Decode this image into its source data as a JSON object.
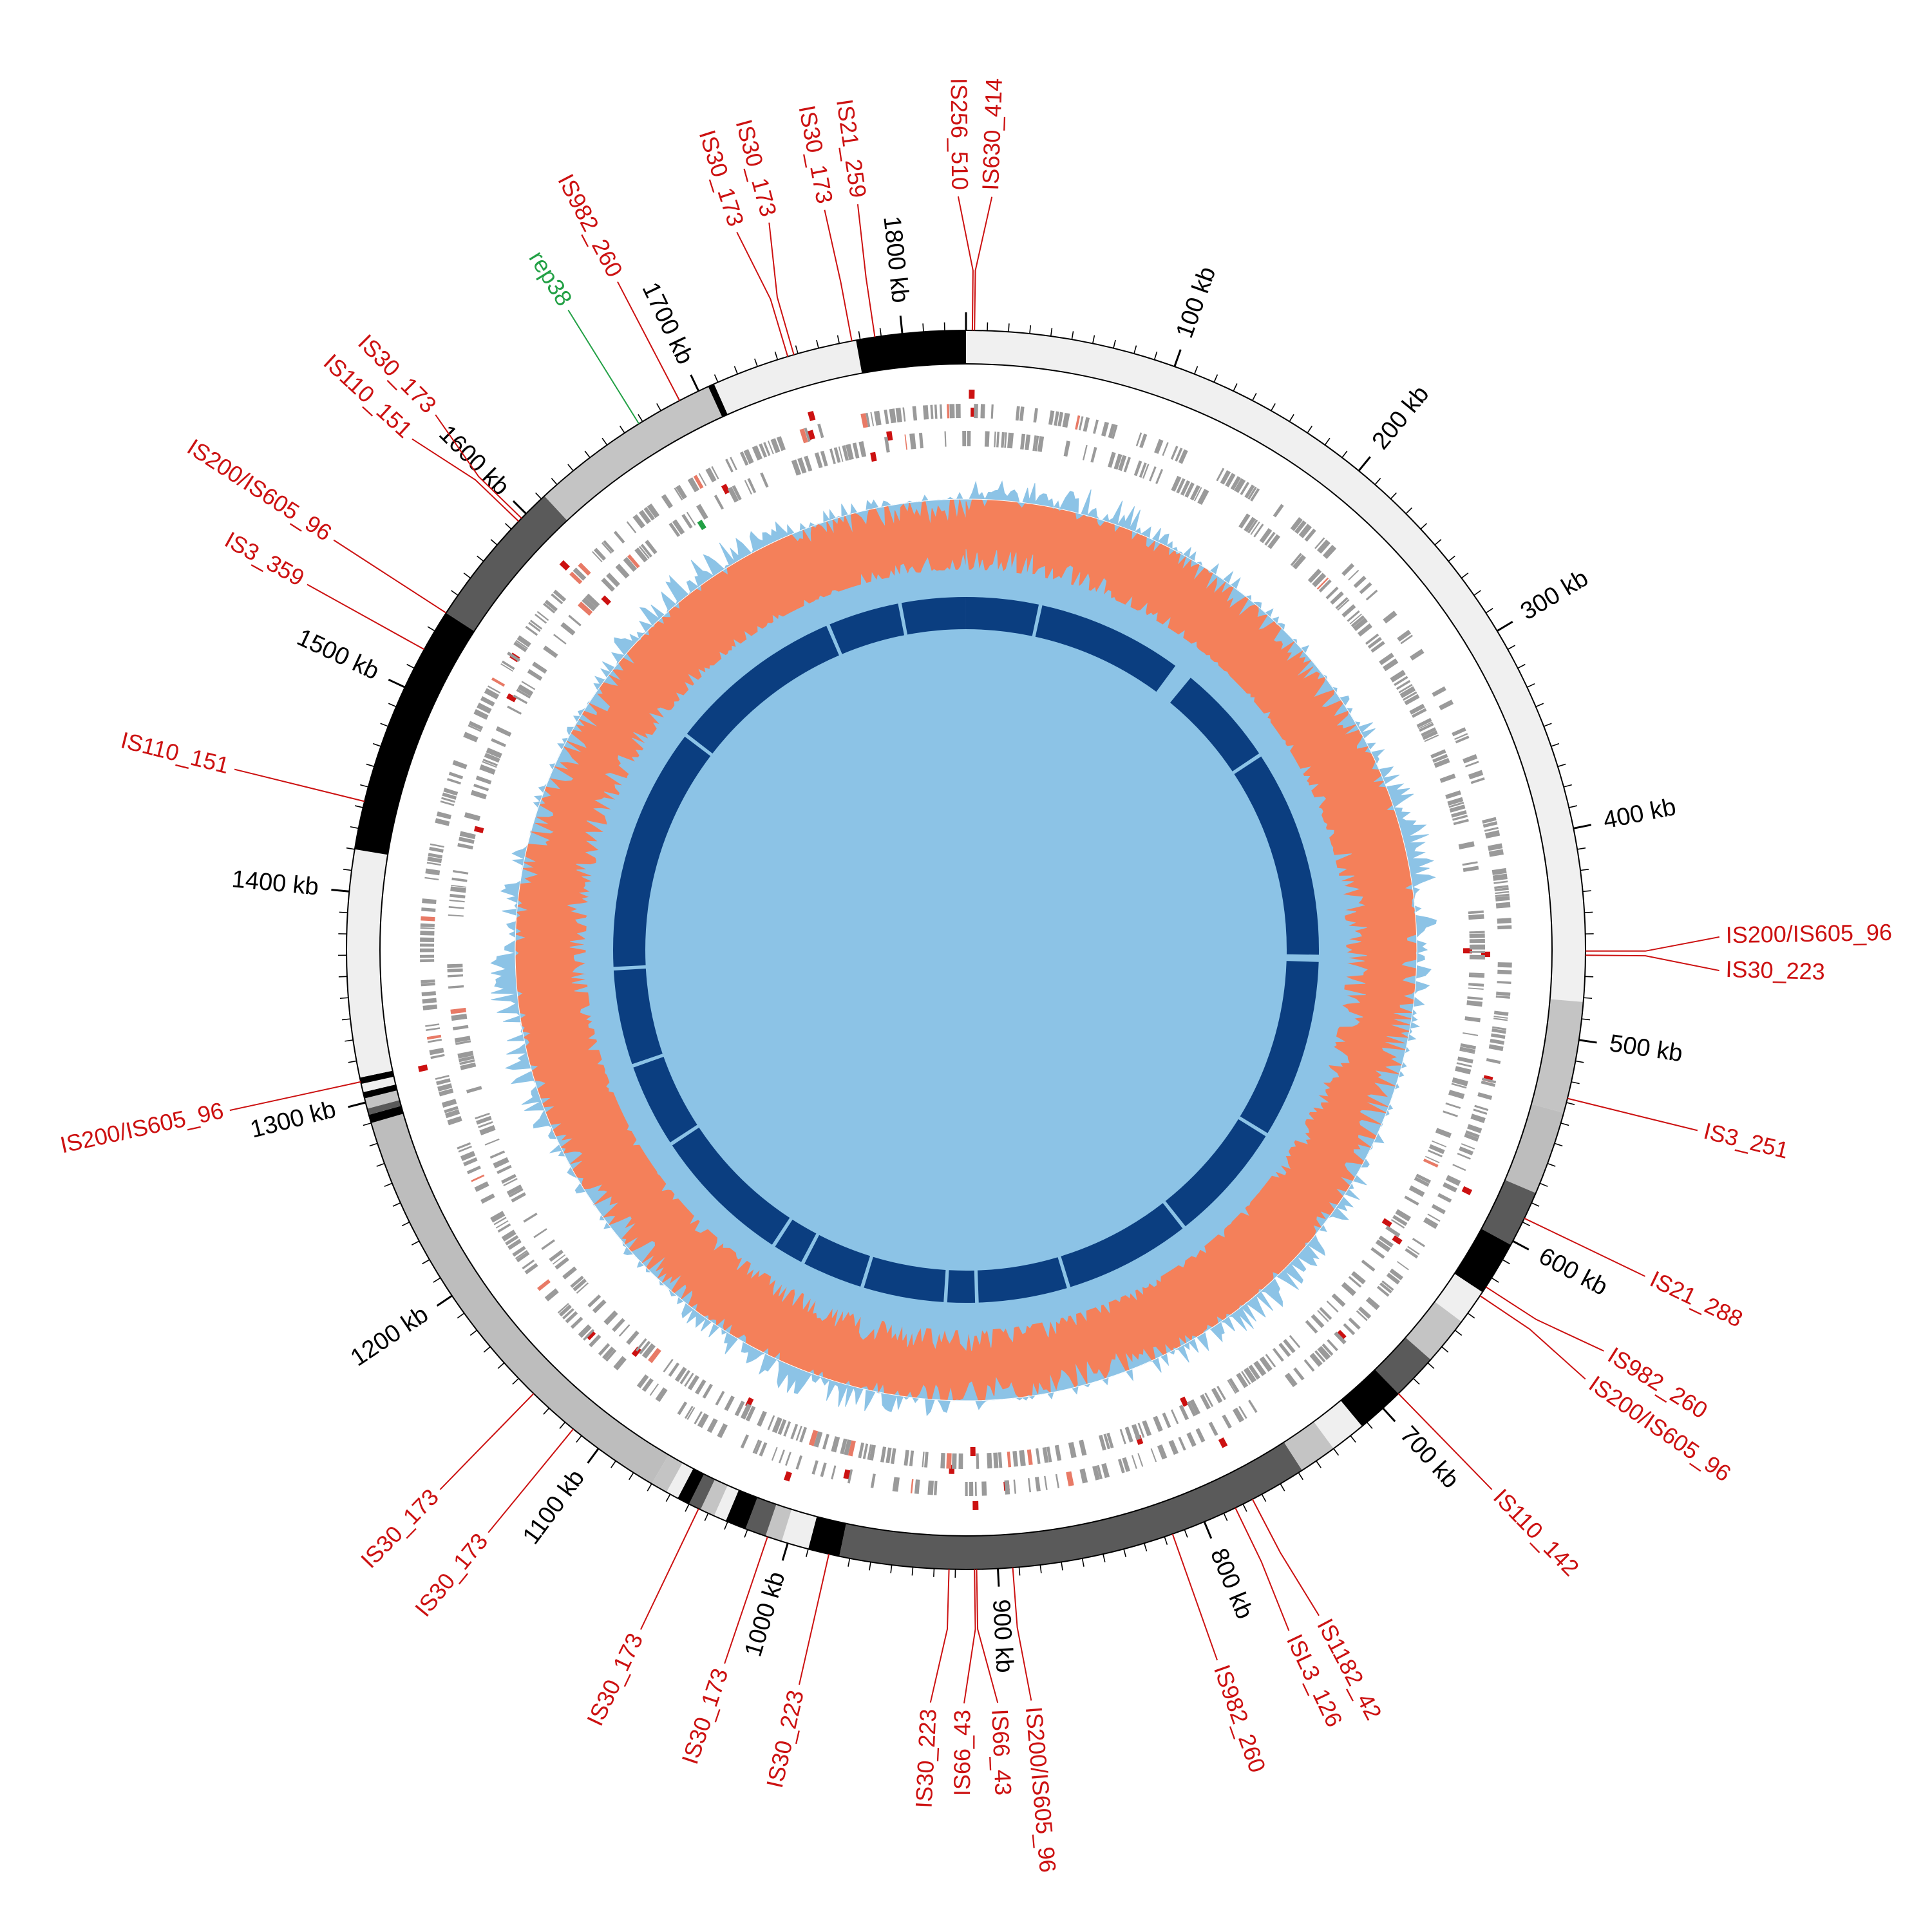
{
  "genome": {
    "length_kb": 1830
  },
  "scale": {
    "major_tick_labels": [
      {
        "kb": 100,
        "label": "100 kb"
      },
      {
        "kb": 200,
        "label": "200 kb"
      },
      {
        "kb": 300,
        "label": "300 kb"
      },
      {
        "kb": 400,
        "label": "400 kb"
      },
      {
        "kb": 500,
        "label": "500 kb"
      },
      {
        "kb": 600,
        "label": "600 kb"
      },
      {
        "kb": 700,
        "label": "700 kb"
      },
      {
        "kb": 800,
        "label": "800 kb"
      },
      {
        "kb": 900,
        "label": "900 kb"
      },
      {
        "kb": 1000,
        "label": "1000 kb"
      },
      {
        "kb": 1100,
        "label": "1100 kb"
      },
      {
        "kb": 1200,
        "label": "1200 kb"
      },
      {
        "kb": 1300,
        "label": "1300 kb"
      },
      {
        "kb": 1400,
        "label": "1400 kb"
      },
      {
        "kb": 1500,
        "label": "1500 kb"
      },
      {
        "kb": 1600,
        "label": "1600 kb"
      },
      {
        "kb": 1700,
        "label": "1700 kb"
      },
      {
        "kb": 1800,
        "label": "1800 kb"
      }
    ]
  },
  "colors": {
    "is_element": "#cc1111",
    "rep_element": "#22a045",
    "gc_positive": "#8cc3e6",
    "gc_negative": "#f4805a",
    "skew_positive": "#8cc3e6",
    "skew_negative": "#86d08a",
    "synteny_block": "#0b3e80",
    "gene": "#9a9a9a"
  },
  "contigs": [
    {
      "start": 0,
      "end": 482,
      "shade": "#f0f0f0"
    },
    {
      "start": 482,
      "end": 535,
      "shade": "#c4c4c4"
    },
    {
      "start": 535,
      "end": 575,
      "shade": "#bdbdbd"
    },
    {
      "start": 575,
      "end": 602,
      "shade": "#5a5a5a"
    },
    {
      "start": 602,
      "end": 628,
      "shade": "#000000"
    },
    {
      "start": 628,
      "end": 645,
      "shade": "#efefef"
    },
    {
      "start": 645,
      "end": 668,
      "shade": "#c4c4c4"
    },
    {
      "start": 668,
      "end": 690,
      "shade": "#5a5a5a"
    },
    {
      "start": 690,
      "end": 713,
      "shade": "#000000"
    },
    {
      "start": 713,
      "end": 730,
      "shade": "#efefef"
    },
    {
      "start": 730,
      "end": 748,
      "shade": "#c4c4c4"
    },
    {
      "start": 748,
      "end": 975,
      "shade": "#5a5a5a"
    },
    {
      "start": 975,
      "end": 990,
      "shade": "#000000"
    },
    {
      "start": 990,
      "end": 1003,
      "shade": "#efefef"
    },
    {
      "start": 1003,
      "end": 1011,
      "shade": "#c4c4c4"
    },
    {
      "start": 1011,
      "end": 1021,
      "shade": "#5a5a5a"
    },
    {
      "start": 1021,
      "end": 1031,
      "shade": "#000000"
    },
    {
      "start": 1031,
      "end": 1037,
      "shade": "#efefef"
    },
    {
      "start": 1037,
      "end": 1044,
      "shade": "#c4c4c4"
    },
    {
      "start": 1044,
      "end": 1050,
      "shade": "#5a5a5a"
    },
    {
      "start": 1050,
      "end": 1056,
      "shade": "#000000"
    },
    {
      "start": 1056,
      "end": 1062,
      "shade": "#efefef"
    },
    {
      "start": 1062,
      "end": 1070,
      "shade": "#c4c4c4"
    },
    {
      "start": 1070,
      "end": 1290,
      "shade": "#bdbdbd"
    },
    {
      "start": 1290,
      "end": 1294,
      "shade": "#000000"
    },
    {
      "start": 1294,
      "end": 1297,
      "shade": "#5a5a5a"
    },
    {
      "start": 1297,
      "end": 1302,
      "shade": "#c4c4c4"
    },
    {
      "start": 1302,
      "end": 1305,
      "shade": "#000000"
    },
    {
      "start": 1305,
      "end": 1309,
      "shade": "#efefef"
    },
    {
      "start": 1309,
      "end": 1312,
      "shade": "#000000"
    },
    {
      "start": 1312,
      "end": 1420,
      "shade": "#efefef"
    },
    {
      "start": 1420,
      "end": 1540,
      "shade": "#000000"
    },
    {
      "start": 1540,
      "end": 1612,
      "shade": "#5a5a5a"
    },
    {
      "start": 1612,
      "end": 1705,
      "shade": "#c4c4c4"
    },
    {
      "start": 1705,
      "end": 1708,
      "shade": "#000000"
    },
    {
      "start": 1708,
      "end": 1778,
      "shade": "#efefef"
    },
    {
      "start": 1778,
      "end": 1830,
      "shade": "#000000"
    }
  ],
  "is_elements": [
    {
      "pos": 3,
      "label": "IS256_510"
    },
    {
      "pos": 4,
      "label": "IS630_414"
    },
    {
      "pos": 1787,
      "label": "IS21_259"
    },
    {
      "pos": 1776,
      "label": "IS30_173"
    },
    {
      "pos": 1748,
      "label": "IS30_173"
    },
    {
      "pos": 1745,
      "label": "IS30_173"
    },
    {
      "pos": 1690,
      "label": "IS982_260"
    },
    {
      "pos": 1597,
      "label": "IS30_173"
    },
    {
      "pos": 1595,
      "label": "IS110_151"
    },
    {
      "pos": 1540,
      "label": "IS200/IS605_96"
    },
    {
      "pos": 1520,
      "label": "IS3_359"
    },
    {
      "pos": 1443,
      "label": "IS110_151"
    },
    {
      "pos": 1310,
      "label": "IS200/IS605_96"
    },
    {
      "pos": 1140,
      "label": "IS30_173"
    },
    {
      "pos": 1115,
      "label": "IS30_173"
    },
    {
      "pos": 1045,
      "label": "IS30_173"
    },
    {
      "pos": 1010,
      "label": "IS30_173"
    },
    {
      "pos": 980,
      "label": "IS30_223"
    },
    {
      "pos": 923,
      "label": "IS30_223"
    },
    {
      "pos": 911,
      "label": "IS66_43"
    },
    {
      "pos": 910,
      "label": "IS66_43"
    },
    {
      "pos": 893,
      "label": "IS200/IS605_96"
    },
    {
      "pos": 816,
      "label": "IS982_260"
    },
    {
      "pos": 784,
      "label": "ISL3_126"
    },
    {
      "pos": 775,
      "label": "IS1182_42"
    },
    {
      "pos": 690,
      "label": "IS110_142"
    },
    {
      "pos": 630,
      "label": "IS200/IS605_96"
    },
    {
      "pos": 625,
      "label": "IS982_260"
    },
    {
      "pos": 588,
      "label": "IS21_288"
    },
    {
      "pos": 528,
      "label": "IS3_251"
    },
    {
      "pos": 460,
      "label": "IS30_223"
    },
    {
      "pos": 458,
      "label": "IS200/IS605_96"
    }
  ],
  "rep_elements": [
    {
      "pos": 1668,
      "label": "rep38"
    }
  ],
  "synteny_gaps_kb": [
    62,
    193,
    287,
    463,
    466,
    618,
    721,
    829,
    906,
    932,
    1002,
    1055,
    1083,
    1203,
    1275,
    1357,
    1563,
    1713,
    1775
  ]
}
